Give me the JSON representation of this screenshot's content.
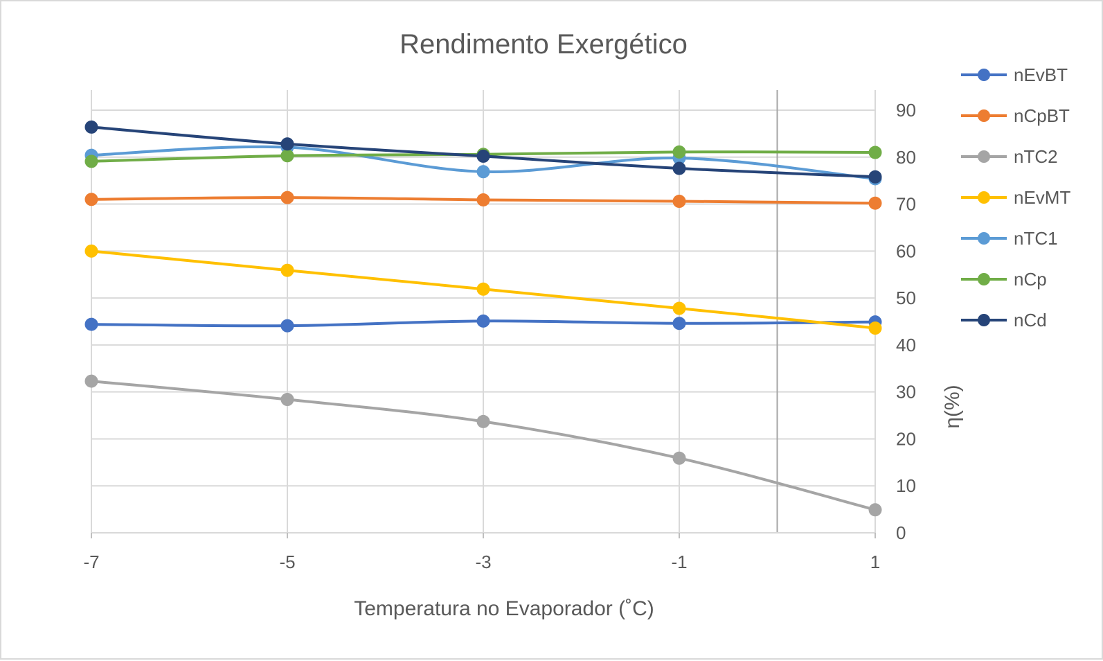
{
  "chart_data": {
    "type": "line",
    "title": "Rendimento Exergético",
    "xlabel": "Temperatura no Evaporador (˚C)",
    "ylabel": "η(%)",
    "x": [
      -7,
      -5,
      -3,
      -1,
      1
    ],
    "x_tick_labels": [
      "-7",
      "-5",
      "-3",
      "-1",
      "1"
    ],
    "xlim": [
      -7,
      1
    ],
    "ylim": [
      0,
      95
    ],
    "y_ticks": [
      0,
      10,
      20,
      30,
      40,
      50,
      60,
      70,
      80,
      90
    ],
    "y_tick_labels": [
      "0",
      "10",
      "20",
      "30",
      "40",
      "50",
      "60",
      "70",
      "80",
      "90"
    ],
    "y_axis_position": "right",
    "vertical_reference_x": 0,
    "grid": true,
    "legend_position": "right",
    "series": [
      {
        "name": "nEvBT",
        "color": "#4472C4",
        "values": [
          44.4,
          44.1,
          45.1,
          44.6,
          44.9
        ]
      },
      {
        "name": "nCpBT",
        "color": "#ED7D31",
        "values": [
          71.0,
          71.4,
          70.9,
          70.6,
          70.2
        ]
      },
      {
        "name": "nTC2",
        "color": "#A5A5A5",
        "values": [
          32.3,
          28.4,
          23.7,
          15.9,
          4.9
        ]
      },
      {
        "name": "nEvMT",
        "color": "#FFC000",
        "values": [
          60.0,
          55.9,
          51.9,
          47.8,
          43.6
        ]
      },
      {
        "name": "nTC1",
        "color": "#5B9BD5",
        "values": [
          80.4,
          82.1,
          76.9,
          79.8,
          75.4
        ]
      },
      {
        "name": "nCp",
        "color": "#70AD47",
        "values": [
          79.1,
          80.3,
          80.6,
          81.1,
          81.0
        ]
      },
      {
        "name": "nCd",
        "color": "#264478",
        "values": [
          86.4,
          82.8,
          80.2,
          77.6,
          75.8
        ]
      }
    ]
  }
}
